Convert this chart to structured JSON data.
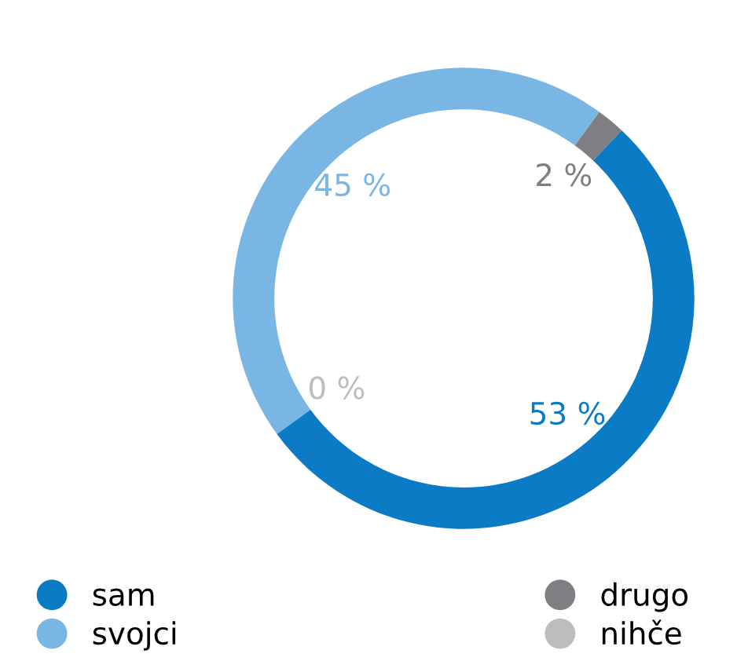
{
  "chart_data": {
    "type": "donut",
    "categories": [
      "sam",
      "drugo",
      "svojci",
      "nihče"
    ],
    "values": [
      53,
      2,
      45,
      0
    ],
    "colors": [
      "#0a7bc4",
      "#7f7f83",
      "#7ab6e4",
      "#bdbdbd"
    ],
    "value_labels": [
      "53 %",
      "2 %",
      "45 %",
      "0 %"
    ],
    "legend": "bottom"
  }
}
